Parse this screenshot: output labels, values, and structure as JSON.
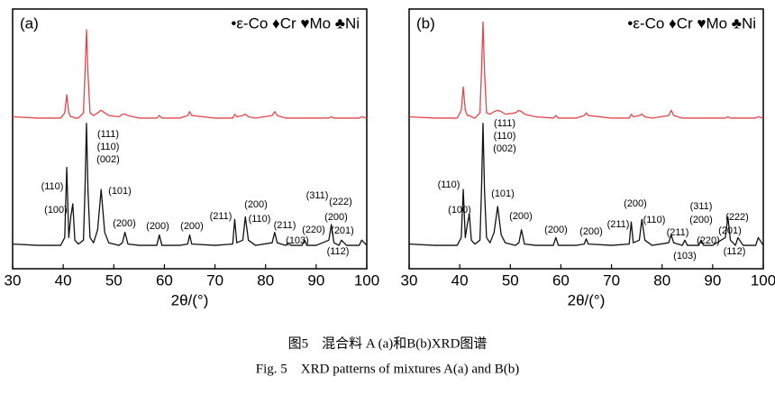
{
  "chart_data": [
    {
      "type": "line",
      "panel_label": "(a)",
      "legend_text": "•ε-Co ♦Cr ♥Mo ♣Ni",
      "x_label": "2θ/(°)",
      "xlim": [
        30,
        100
      ],
      "xticks": [
        30,
        40,
        50,
        60,
        70,
        80,
        90,
        100
      ],
      "ylim": [
        0,
        100
      ],
      "x": [
        30,
        35,
        39.5,
        40.3,
        40.7,
        41.1,
        41.5,
        41.9,
        42.3,
        43,
        44,
        44.3,
        44.6,
        44.9,
        45.3,
        46,
        46.8,
        47.5,
        48.2,
        49,
        51,
        51.7,
        52.2,
        52.8,
        55,
        58.5,
        59,
        59.5,
        63,
        64.6,
        65,
        65.4,
        70,
        73.5,
        73.9,
        74.3,
        75.5,
        76,
        76.6,
        78,
        81.3,
        81.8,
        82.3,
        84,
        84.5,
        85,
        87.2,
        87.7,
        88.2,
        90,
        92.5,
        93,
        93.5,
        94.5,
        95,
        96,
        98.5,
        99,
        100
      ],
      "series": [
        {
          "color": "#e0474c",
          "values": [
            58.5,
            58,
            58,
            60,
            67,
            60,
            58.5,
            58.5,
            58,
            58,
            60,
            75,
            92,
            75,
            60,
            59,
            60,
            61,
            60,
            59,
            58.5,
            59.5,
            59.5,
            59,
            58,
            58,
            59,
            58,
            58,
            59,
            60.5,
            59,
            58,
            58,
            59.5,
            58.5,
            59,
            59.5,
            58.5,
            58,
            59,
            60.5,
            59,
            58,
            58,
            58,
            58,
            58,
            58,
            58,
            58,
            58.5,
            58,
            58,
            58,
            58,
            58,
            58.5,
            58
          ]
        },
        {
          "color": "#111111",
          "values": [
            9.5,
            9,
            9,
            12,
            39,
            12,
            20,
            25,
            11,
            9.5,
            11,
            30,
            56,
            30,
            12,
            10,
            15,
            30.5,
            14,
            10,
            9,
            10,
            14,
            9.5,
            9,
            9,
            13,
            9,
            9,
            9.5,
            13,
            9.5,
            9,
            9.5,
            19,
            10,
            11,
            20,
            11,
            9,
            10,
            14,
            10,
            9,
            10,
            9,
            9,
            11,
            9,
            9,
            11,
            17,
            10,
            9,
            11,
            9,
            9,
            11,
            9
          ]
        }
      ],
      "annotations": [
        "(110)",
        "(100)",
        "(111)",
        "(110)",
        "(002)",
        "(101)",
        "(200)",
        "(200)",
        "(200)",
        "(211)",
        "(200)",
        "(110)",
        "(211)",
        "(311)",
        "(222)",
        "(220)",
        "(200)",
        "(201)",
        "(103)",
        "(112)"
      ]
    },
    {
      "type": "line",
      "panel_label": "(b)",
      "legend_text": "•ε-Co ♦Cr ♥Mo ♣Ni",
      "x_label": "2θ/(°)",
      "xlim": [
        30,
        100
      ],
      "xticks": [
        30,
        40,
        50,
        60,
        70,
        80,
        90,
        100
      ],
      "ylim": [
        0,
        100
      ],
      "x": [
        30,
        35,
        39.5,
        40.3,
        40.7,
        41.1,
        41.5,
        41.9,
        42.3,
        43,
        44,
        44.3,
        44.6,
        44.9,
        45.3,
        46,
        46.8,
        47.5,
        48.2,
        49,
        51,
        51.7,
        52.2,
        52.8,
        55,
        58.5,
        59,
        59.5,
        63,
        64.6,
        65,
        65.4,
        70,
        73.5,
        73.9,
        74.3,
        75.5,
        76,
        76.6,
        78,
        81.3,
        81.8,
        82.3,
        84,
        84.5,
        85,
        87.2,
        87.7,
        88.2,
        90,
        92.5,
        93,
        93.5,
        94.5,
        95,
        96,
        98.5,
        99,
        100
      ],
      "series": [
        {
          "color": "#e0474c",
          "values": [
            58.5,
            58,
            58,
            61,
            70,
            61,
            59,
            59,
            58.5,
            58,
            60,
            76,
            95,
            76,
            60,
            59.5,
            60.5,
            61,
            60.5,
            59.5,
            60,
            61,
            60.5,
            59.5,
            58.5,
            58,
            59,
            58,
            58,
            59,
            60,
            59,
            58,
            58,
            59.5,
            58.5,
            59,
            59.5,
            58.5,
            58,
            59,
            61,
            59,
            58,
            58,
            58,
            58,
            58,
            58,
            58,
            58,
            58.5,
            58,
            58,
            58,
            58,
            58,
            58.5,
            58
          ]
        },
        {
          "color": "#111111",
          "values": [
            9.5,
            9,
            9,
            12,
            30.5,
            12,
            17,
            21,
            11,
            9.5,
            11,
            30,
            56,
            30,
            12,
            10,
            14,
            24,
            13,
            10,
            9,
            10,
            15,
            9.5,
            9,
            9,
            12,
            9,
            9,
            9.5,
            11.5,
            9.5,
            9,
            9.5,
            18,
            10,
            11,
            19,
            11,
            9,
            10,
            13,
            10,
            9,
            11,
            9,
            9,
            11,
            9,
            9,
            12,
            20,
            11,
            9,
            12,
            9,
            9,
            12,
            9
          ]
        }
      ],
      "annotations": [
        "(110)",
        "(100)",
        "(111)",
        "(110)",
        "(002)",
        "(101)",
        "(200)",
        "(200)",
        "(200)",
        "(211)",
        "(200)",
        "(110)",
        "(211)",
        "(103)",
        "(220)",
        "(311)",
        "(200)",
        "(222)",
        "(201)",
        "(112)"
      ]
    }
  ],
  "caption_cn": "图5　混合料 A (a)和B(b)XRD图谱",
  "caption_en": "Fig. 5　XRD patterns of mixtures A(a) and B(b)"
}
